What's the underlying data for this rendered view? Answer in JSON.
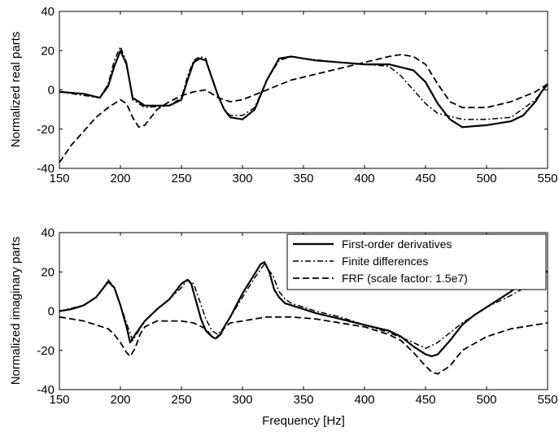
{
  "chart_data": [
    {
      "type": "line",
      "title": "",
      "xlabel": "",
      "ylabel": "Normalized real parts",
      "xlim": [
        150,
        550
      ],
      "ylim": [
        -40,
        40
      ],
      "xticks": [
        "150",
        "200",
        "250",
        "300",
        "350",
        "400",
        "450",
        "500",
        "550"
      ],
      "yticks": [
        "40",
        "20",
        "0",
        "-20",
        "-40"
      ],
      "grid": false,
      "legend": false,
      "series": [
        {
          "style": "solid",
          "x": [
            150,
            170,
            183,
            190,
            195,
            200,
            205,
            210,
            220,
            230,
            240,
            250,
            255,
            260,
            265,
            270,
            275,
            280,
            285,
            290,
            300,
            310,
            320,
            330,
            340,
            350,
            360,
            380,
            400,
            420,
            440,
            450,
            460,
            470,
            480,
            500,
            520,
            530,
            540,
            545,
            550
          ],
          "y": [
            -1,
            -2,
            -4,
            2,
            12,
            20,
            13,
            -4,
            -8,
            -8,
            -8,
            -5,
            5,
            14,
            16,
            15,
            6,
            -3,
            -10,
            -14,
            -15,
            -10,
            5,
            16,
            17,
            16,
            15,
            14,
            13,
            13,
            10,
            4,
            -7,
            -15,
            -19,
            -18,
            -16,
            -13,
            -6,
            -1,
            3
          ]
        },
        {
          "style": "dashdot",
          "x": [
            150,
            183,
            190,
            195,
            200,
            205,
            210,
            220,
            240,
            250,
            255,
            260,
            265,
            270,
            275,
            280,
            285,
            290,
            300,
            310,
            320,
            330,
            340,
            350,
            380,
            400,
            420,
            430,
            440,
            450,
            460,
            480,
            500,
            520,
            540,
            550
          ],
          "y": [
            -1,
            -4,
            3,
            15,
            22,
            14,
            -5,
            -9,
            -8,
            -4,
            7,
            15,
            17,
            16,
            6,
            -3,
            -10,
            -13,
            -13,
            -9,
            5,
            15,
            17,
            16,
            14,
            13,
            12,
            7,
            0,
            -7,
            -12,
            -15,
            -15,
            -14,
            -5,
            3
          ]
        },
        {
          "style": "dashed",
          "x": [
            150,
            160,
            170,
            180,
            190,
            200,
            205,
            210,
            215,
            220,
            230,
            240,
            250,
            260,
            270,
            280,
            290,
            300,
            320,
            340,
            360,
            380,
            400,
            420,
            430,
            440,
            450,
            460,
            470,
            480,
            500,
            520,
            540,
            550
          ],
          "y": [
            -37,
            -28,
            -21,
            -14,
            -9,
            -5,
            -7,
            -14,
            -19,
            -18,
            -10,
            -6,
            -3,
            -1,
            0,
            -4,
            -6,
            -5,
            0,
            5,
            8,
            11,
            14,
            17,
            18,
            17,
            13,
            3,
            -6,
            -9,
            -9,
            -6,
            -1,
            3
          ]
        }
      ]
    },
    {
      "type": "line",
      "title": "",
      "xlabel": "Frequency [Hz]",
      "ylabel": "Normalized imaginary parts",
      "xlim": [
        150,
        550
      ],
      "ylim": [
        -40,
        40
      ],
      "xticks": [
        "150",
        "200",
        "250",
        "300",
        "350",
        "400",
        "450",
        "500",
        "550"
      ],
      "yticks": [
        "40",
        "20",
        "0",
        "-20",
        "-40"
      ],
      "grid": false,
      "legend": true,
      "legend_position": "top-right",
      "series": [
        {
          "name": "First-order derivatives",
          "style": "solid",
          "x": [
            150,
            160,
            170,
            180,
            185,
            190,
            195,
            200,
            205,
            208,
            212,
            220,
            230,
            240,
            245,
            250,
            255,
            258,
            262,
            266,
            270,
            275,
            278,
            282,
            286,
            290,
            295,
            300,
            305,
            310,
            315,
            318,
            322,
            326,
            330,
            335,
            340,
            350,
            360,
            380,
            400,
            420,
            430,
            440,
            450,
            455,
            460,
            470,
            480,
            490,
            500,
            510,
            520,
            530,
            540,
            545,
            550
          ],
          "y": [
            0,
            1,
            3,
            7,
            11,
            15,
            12,
            3,
            -8,
            -16,
            -12,
            -5,
            1,
            6,
            10,
            14,
            16,
            14,
            5,
            -4,
            -10,
            -13,
            -14,
            -12,
            -7,
            -3,
            3,
            9,
            14,
            19,
            24,
            25,
            20,
            11,
            7,
            4,
            3,
            1,
            -1,
            -4,
            -7,
            -10,
            -13,
            -18,
            -22,
            -23,
            -22,
            -15,
            -7,
            -2,
            2,
            6,
            10,
            15,
            19,
            21,
            20
          ]
        },
        {
          "name": "Finite differences",
          "style": "dashdot",
          "x": [
            150,
            170,
            180,
            185,
            190,
            195,
            200,
            205,
            210,
            215,
            220,
            230,
            240,
            250,
            255,
            260,
            265,
            270,
            275,
            280,
            285,
            290,
            300,
            310,
            318,
            325,
            330,
            335,
            340,
            350,
            360,
            380,
            400,
            420,
            440,
            450,
            460,
            480,
            500,
            520,
            540,
            550
          ],
          "y": [
            0,
            3,
            7,
            11,
            16,
            12,
            3,
            -6,
            -15,
            -10,
            -5,
            1,
            6,
            12,
            16,
            14,
            5,
            -4,
            -10,
            -12,
            -8,
            -3,
            7,
            17,
            24,
            18,
            10,
            6,
            4,
            2,
            0,
            -3,
            -7,
            -11,
            -16,
            -19,
            -16,
            -6,
            2,
            8,
            15,
            16
          ]
        },
        {
          "name": "FRF (scale factor: 1.5e7)",
          "style": "dashed",
          "x": [
            150,
            160,
            170,
            180,
            190,
            195,
            200,
            205,
            208,
            212,
            216,
            220,
            230,
            240,
            250,
            260,
            270,
            275,
            278,
            282,
            286,
            290,
            300,
            310,
            320,
            340,
            360,
            380,
            400,
            420,
            430,
            440,
            450,
            455,
            460,
            470,
            480,
            500,
            520,
            540,
            550
          ],
          "y": [
            -3,
            -4,
            -5,
            -7,
            -9,
            -12,
            -16,
            -21,
            -23,
            -19,
            -12,
            -8,
            -5,
            -5,
            -5,
            -6,
            -9,
            -13,
            -14,
            -11,
            -8,
            -6,
            -5,
            -4,
            -3,
            -3,
            -4,
            -6,
            -8,
            -12,
            -15,
            -21,
            -28,
            -31,
            -32,
            -28,
            -20,
            -13,
            -9,
            -7,
            -6
          ]
        }
      ]
    }
  ]
}
